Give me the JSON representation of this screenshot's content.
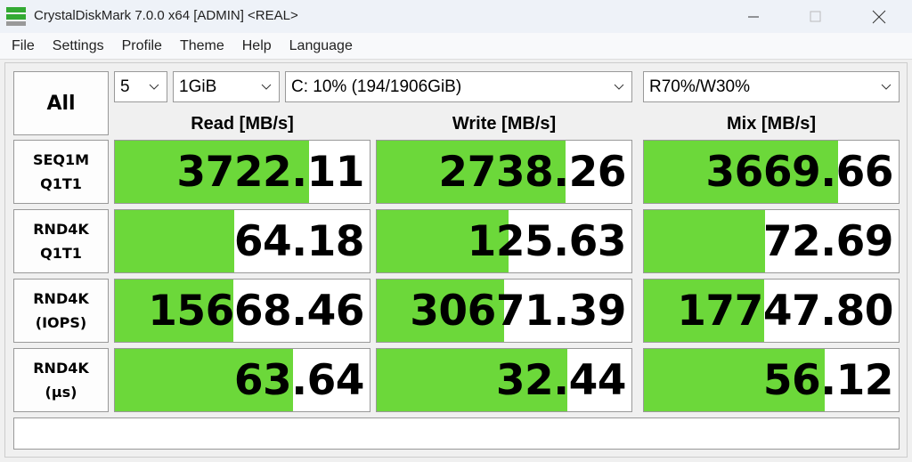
{
  "window": {
    "title": "CrystalDiskMark 7.0.0 x64 [ADMIN] <REAL>"
  },
  "menu": [
    "File",
    "Settings",
    "Profile",
    "Theme",
    "Help",
    "Language"
  ],
  "controls": {
    "all": "All",
    "count": "5",
    "size": "1GiB",
    "drive": "C: 10% (194/1906GiB)",
    "mix": "R70%/W30%"
  },
  "columns": [
    "Read [MB/s]",
    "Write [MB/s]",
    "Mix [MB/s]"
  ],
  "rows": [
    {
      "label": [
        "SEQ1M",
        "Q1T1"
      ],
      "values": [
        "3722.11",
        "2738.26",
        "3669.66"
      ]
    },
    {
      "label": [
        "RND4K",
        "Q1T1"
      ],
      "values": [
        "64.18",
        "125.63",
        "72.69"
      ]
    },
    {
      "label": [
        "RND4K",
        "(IOPS)"
      ],
      "values": [
        "15668.46",
        "30671.39",
        "17747.80"
      ]
    },
    {
      "label": [
        "RND4K",
        "(μs)"
      ],
      "values": [
        "63.64",
        "32.44",
        "56.12"
      ]
    }
  ]
}
